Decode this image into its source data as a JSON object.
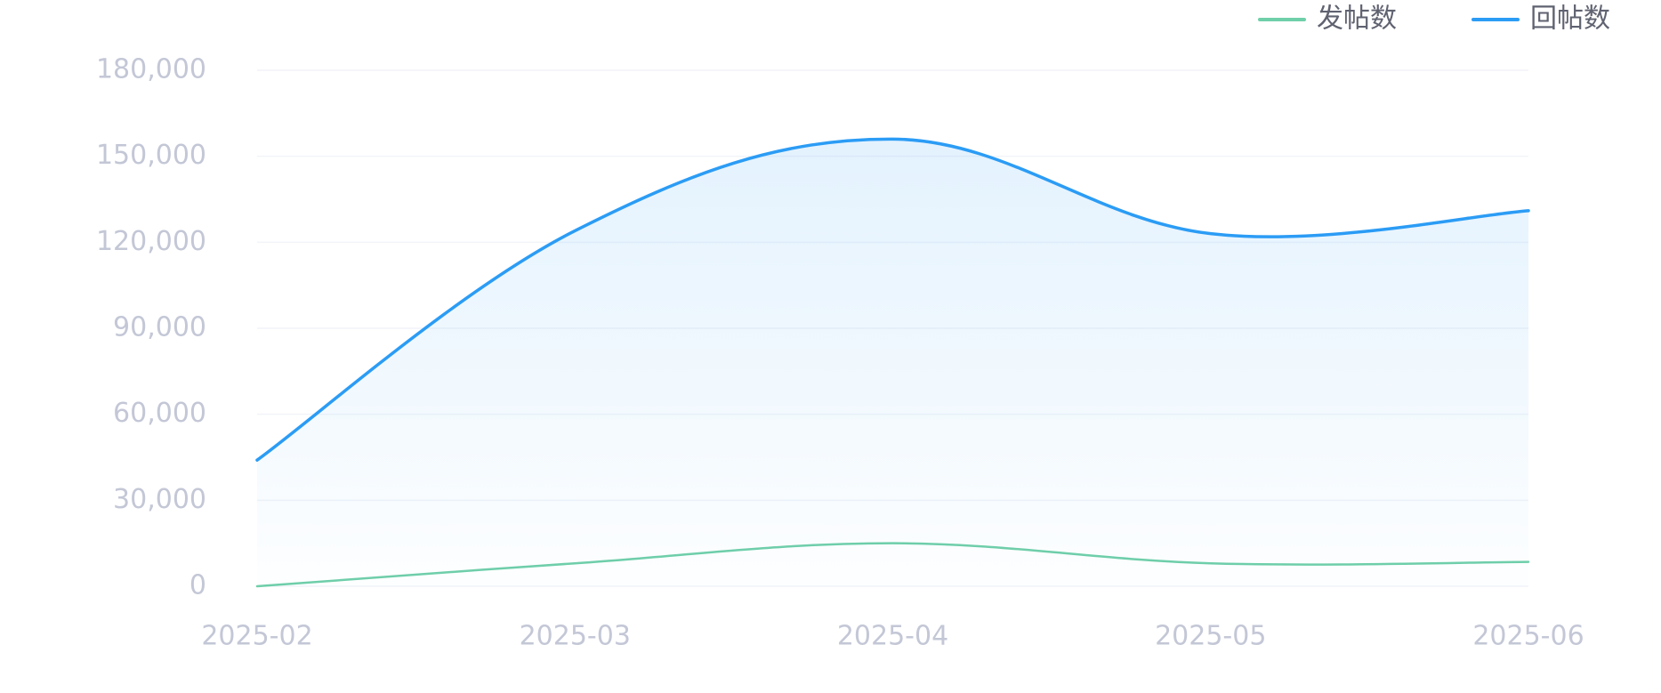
{
  "chart_data": {
    "type": "area",
    "title": "",
    "xlabel": "",
    "ylabel": "",
    "categories": [
      "2025-02",
      "2025-03",
      "2025-04",
      "2025-05",
      "2025-06"
    ],
    "ylim": [
      0,
      180000
    ],
    "y_ticks": [
      0,
      30000,
      60000,
      90000,
      120000,
      150000,
      180000
    ],
    "y_tick_labels": [
      "0",
      "30,000",
      "60,000",
      "90,000",
      "120,000",
      "150,000",
      "180,000"
    ],
    "grid": true,
    "smooth": true,
    "legend_position": "top-right",
    "series": [
      {
        "name": "发帖数",
        "values": [
          0,
          8000,
          15000,
          8000,
          8500
        ],
        "color": "#6fcfa9",
        "fill": false
      },
      {
        "name": "回帖数",
        "values": [
          44000,
          124000,
          156000,
          123000,
          131000
        ],
        "color": "#2b9cf5",
        "fill": true
      }
    ]
  }
}
